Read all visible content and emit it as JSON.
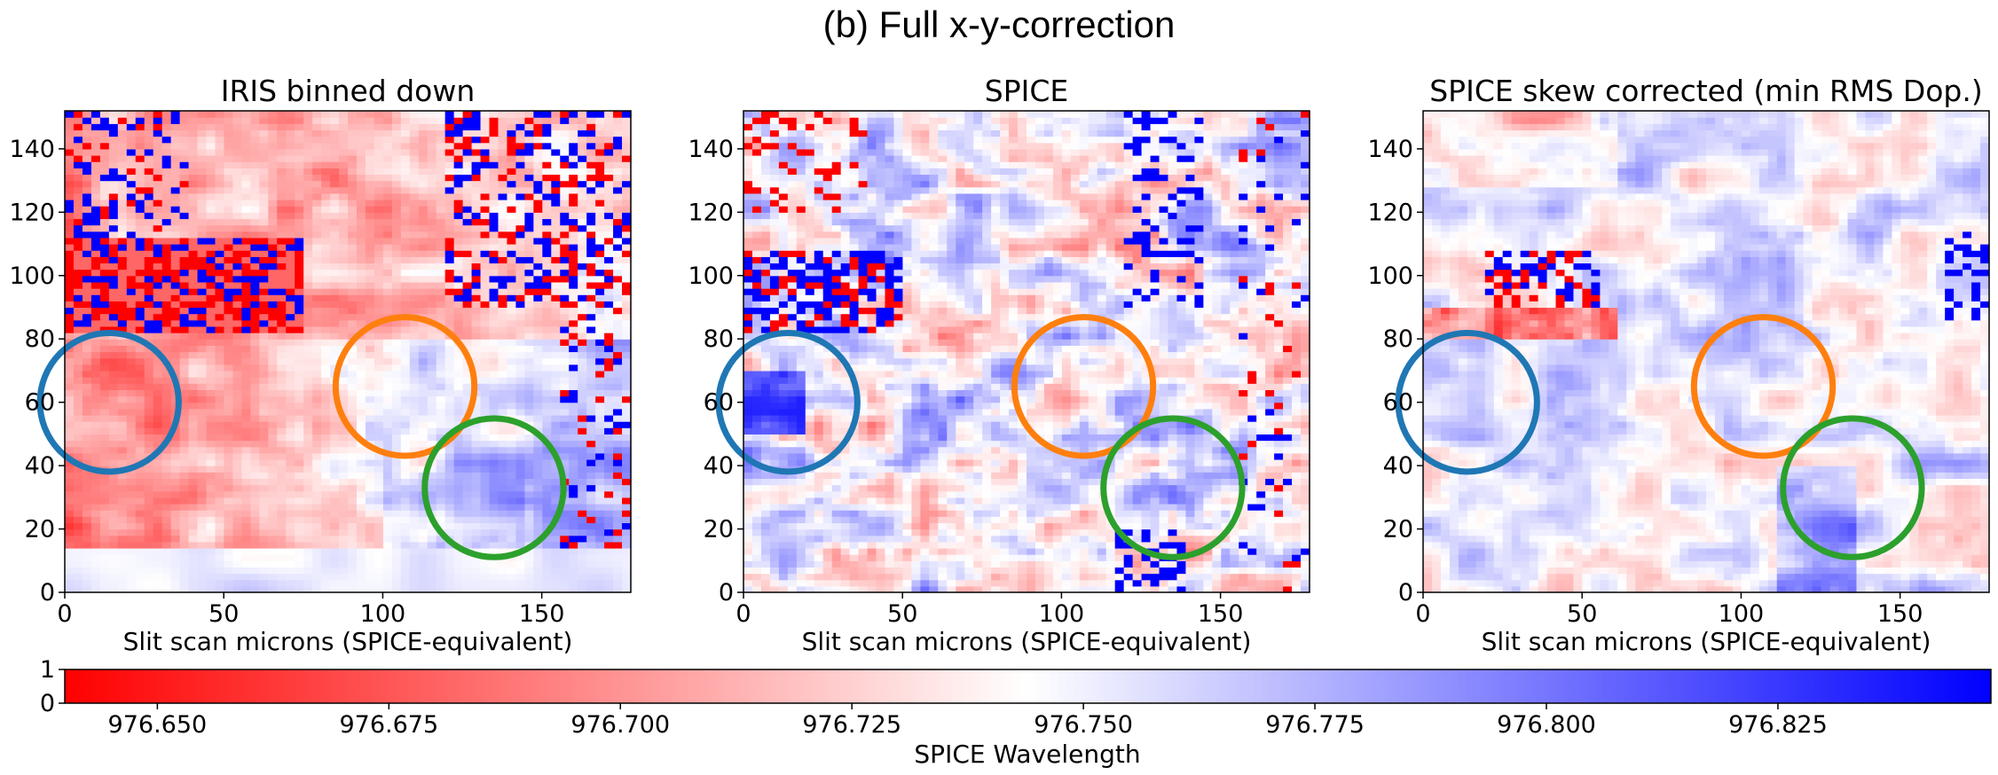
{
  "figure_title": "(b) Full x-y-correction",
  "chart_data": [
    {
      "type": "heatmap",
      "title": "IRIS binned down",
      "xlabel": "Slit scan microns (SPICE-equivalent)",
      "ylabel": "",
      "xlim": [
        0,
        178
      ],
      "ylim": [
        0,
        152
      ],
      "xticks": [
        0,
        50,
        100,
        150
      ],
      "yticks": [
        0,
        20,
        40,
        60,
        80,
        100,
        120,
        140
      ],
      "grid": false,
      "style": "iris",
      "circles": [
        {
          "color": "#1f77b4",
          "label": "blue",
          "center": [
            14,
            60
          ],
          "radius": 14
        },
        {
          "color": "#ff7f0e",
          "label": "orange",
          "center": [
            107,
            65
          ],
          "radius": 14
        },
        {
          "color": "#2ca02c",
          "label": "green",
          "center": [
            135,
            33
          ],
          "radius": 14
        }
      ]
    },
    {
      "type": "heatmap",
      "title": "SPICE",
      "xlabel": "Slit scan microns (SPICE-equivalent)",
      "ylabel": "",
      "xlim": [
        0,
        178
      ],
      "ylim": [
        0,
        152
      ],
      "xticks": [
        0,
        50,
        100,
        150
      ],
      "yticks": [
        0,
        20,
        40,
        60,
        80,
        100,
        120,
        140
      ],
      "grid": false,
      "style": "spice",
      "circles": [
        {
          "color": "#1f77b4",
          "label": "blue",
          "center": [
            14,
            60
          ],
          "radius": 14
        },
        {
          "color": "#ff7f0e",
          "label": "orange",
          "center": [
            107,
            65
          ],
          "radius": 14
        },
        {
          "color": "#2ca02c",
          "label": "green",
          "center": [
            135,
            33
          ],
          "radius": 14
        }
      ]
    },
    {
      "type": "heatmap",
      "title": "SPICE skew corrected (min RMS Dop.)",
      "xlabel": "Slit scan microns (SPICE-equivalent)",
      "ylabel": "",
      "xlim": [
        0,
        178
      ],
      "ylim": [
        0,
        152
      ],
      "xticks": [
        0,
        50,
        100,
        150
      ],
      "yticks": [
        0,
        20,
        40,
        60,
        80,
        100,
        120,
        140
      ],
      "grid": false,
      "style": "corrected",
      "circles": [
        {
          "color": "#1f77b4",
          "label": "blue",
          "center": [
            14,
            60
          ],
          "radius": 14
        },
        {
          "color": "#ff7f0e",
          "label": "orange",
          "center": [
            107,
            65
          ],
          "radius": 14
        },
        {
          "color": "#2ca02c",
          "label": "green",
          "center": [
            135,
            33
          ],
          "radius": 14
        }
      ]
    }
  ],
  "colorbar": {
    "label": "SPICE Wavelength",
    "colormap": "bwr",
    "range": [
      976.64,
      976.848
    ],
    "ticks": [
      "976.650",
      "976.675",
      "976.700",
      "976.725",
      "976.750",
      "976.775",
      "976.800",
      "976.825"
    ],
    "tick_values": [
      976.65,
      976.675,
      976.7,
      976.725,
      976.75,
      976.775,
      976.8,
      976.825
    ],
    "y_ticks": [
      "1",
      "0"
    ],
    "color_low": "#ff0000",
    "color_mid": "#ffffff",
    "color_high": "#0000ff"
  }
}
